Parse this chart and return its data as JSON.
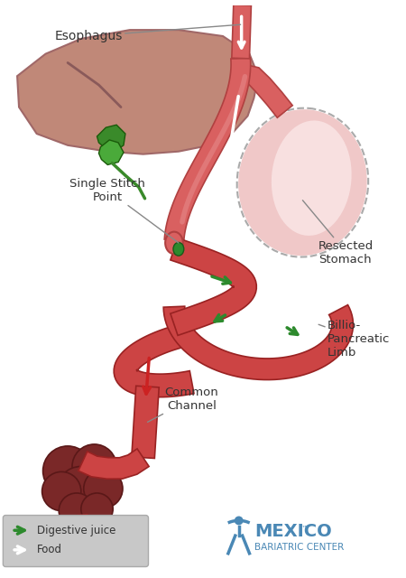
{
  "bg_color": "#ffffff",
  "liver_color": "#c08878",
  "liver_edge": "#a06868",
  "liver_dark_line": "#8a5a5a",
  "gallbladder_color": "#3a8a2a",
  "gallbladder_edge": "#1a5a0a",
  "gallbladder2_color": "#4aaa3a",
  "sleeve_color": "#d96060",
  "sleeve_edge": "#b04040",
  "sleeve_light": "#e88880",
  "resected_fill": "#f0c8c8",
  "resected_edge": "#aaaaaa",
  "intestine_color": "#cc4444",
  "intestine_edge": "#992222",
  "intestine_inner": "#e06060",
  "colon_color": "#7a2828",
  "colon_edge": "#5a1818",
  "green_arrow": "#2d8a2d",
  "red_arrow": "#cc2222",
  "white_arrow": "#ffffff",
  "line_color": "#888888",
  "text_color": "#333333",
  "legend_bg": "#c8c8c8",
  "legend_edge": "#aaaaaa",
  "mbc_color": "#4a88b5",
  "label_esophagus": "Esophagus",
  "label_single_stitch": "Single Stitch\nPoint",
  "label_resected": "Resected\nStomach",
  "label_billio": "Billio-\nPancreatic\nLimb",
  "label_common": "Common\nChannel",
  "legend_digestive": "Digestive juice",
  "legend_food": "Food",
  "figsize": [
    4.5,
    6.4
  ],
  "dpi": 100
}
